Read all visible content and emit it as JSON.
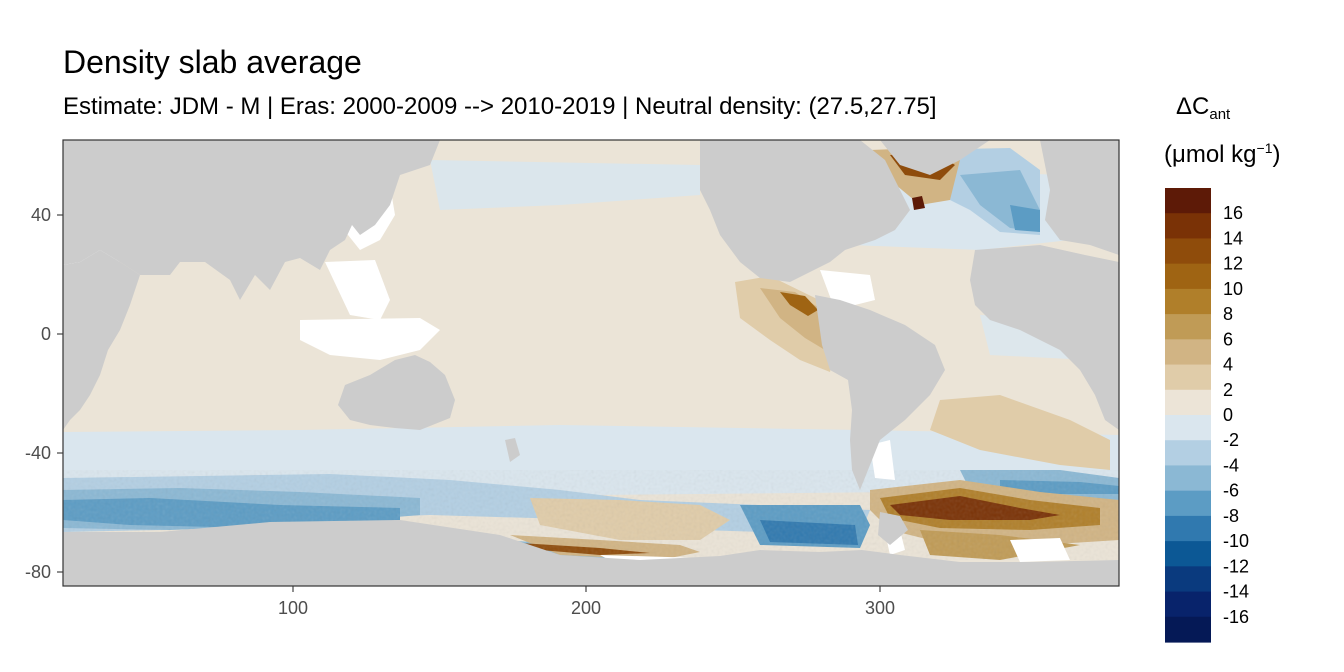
{
  "header": {
    "title": "Density slab average",
    "subtitle": "Estimate: JDM - M | Eras: 2000-2009 --> 2010-2019 | Neutral density: (27.5,27.75]"
  },
  "map": {
    "projection": "longitude-latitude",
    "x_range": [
      20,
      380
    ],
    "y_range": [
      -85,
      65
    ],
    "x_ticks": [
      "100",
      "200",
      "300"
    ],
    "y_ticks": [
      "40",
      "0",
      "-40",
      "-80"
    ],
    "land_color": "#cccccc",
    "no_data_color": "#ffffff"
  },
  "legend": {
    "title_main": "ΔC",
    "title_sub": "ant",
    "units_open": "(μmol kg",
    "units_sup": "−1",
    "units_close": ")",
    "labels": [
      "16",
      "14",
      "12",
      "10",
      "8",
      "6",
      "4",
      "2",
      "0",
      "-2",
      "-4",
      "-6",
      "-8",
      "-10",
      "-12",
      "-14",
      "-16"
    ],
    "colors": [
      "#5d1a07",
      "#7a3206",
      "#8f4c0b",
      "#9f6413",
      "#b07f2a",
      "#c09b56",
      "#d1b484",
      "#e0cca9",
      "#ece4d7",
      "#dae6ee",
      "#b3cfe3",
      "#8bb8d4",
      "#5c9cc4",
      "#3079af",
      "#0c5895",
      "#0a3a7e",
      "#08236b",
      "#051956"
    ]
  }
}
